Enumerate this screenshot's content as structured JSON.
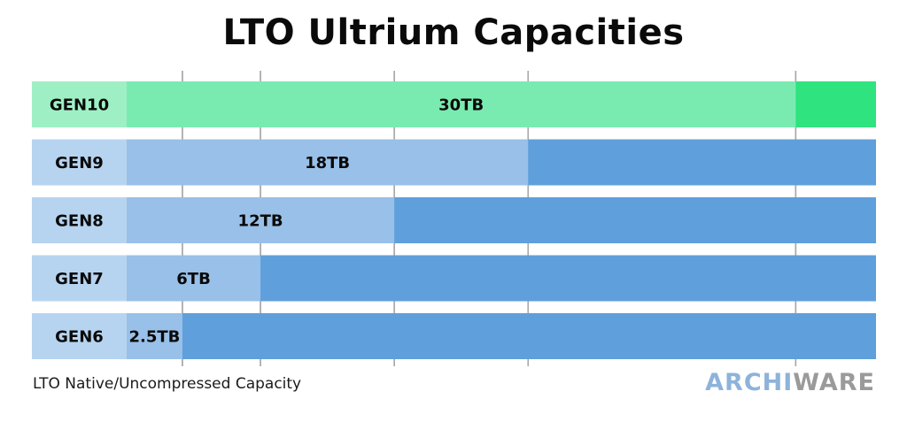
{
  "chart_data": {
    "type": "bar",
    "title": "LTO Ultrium Capacities",
    "categories": [
      "GEN10",
      "GEN9",
      "GEN8",
      "GEN7",
      "GEN6"
    ],
    "values": [
      30,
      18,
      12,
      6,
      2.5
    ],
    "value_labels": [
      "30TB",
      "18TB",
      "12TB",
      "6TB",
      "2.5TB"
    ],
    "unit": "TB",
    "orientation": "horizontal",
    "xlim": [
      0,
      33.6
    ],
    "gridlines": [
      2.5,
      6,
      12,
      18,
      30
    ],
    "grid": true,
    "legend": "none"
  },
  "footnote": "LTO Native/Uncompressed Capacity",
  "brand": {
    "part1": "ARCHI",
    "part2": "WARE"
  },
  "colors": {
    "gen10_label_bg": "#9ef0c4",
    "gen10_bar": "#7aebb0",
    "gen10_track": "#2fe37f",
    "label_bg": "#b6d4f0",
    "bar": "#98c0e8",
    "track": "#5f9fdb",
    "grid": "#a8a8a8",
    "text": "#0a0a0a"
  }
}
